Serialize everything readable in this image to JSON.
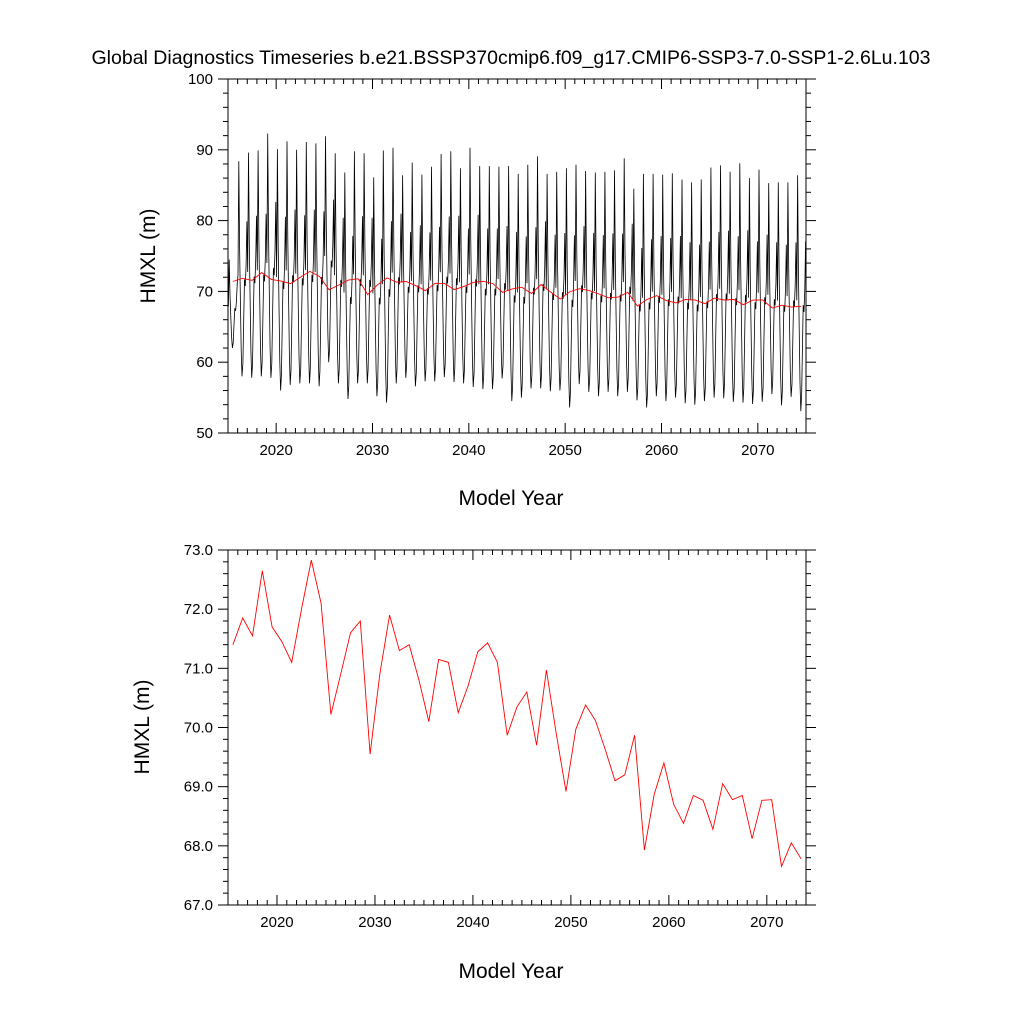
{
  "figure": {
    "title": "Global Diagnostics Timeseries b.e21.BSSP370cmip6.f09_g17.CMIP6-SSP3-7.0-SSP1-2.6Lu.103"
  },
  "chart_data": [
    {
      "type": "line",
      "title": "Global Diagnostics Timeseries b.e21.BSSP370cmip6.f09_g17.CMIP6-SSP3-7.0-SSP1-2.6Lu.103",
      "xlabel": "Model Year",
      "ylabel": "HMXL (m)",
      "xlim": [
        2015,
        2075
      ],
      "ylim": [
        50,
        100
      ],
      "xticks": [
        2020,
        2030,
        2040,
        2050,
        2060,
        2070
      ],
      "xtick_labels": [
        "2020",
        "2030",
        "2040",
        "2050",
        "2060",
        "2070"
      ],
      "yticks": [
        50,
        60,
        70,
        80,
        90,
        100
      ],
      "ytick_labels": [
        "50",
        "60",
        "70",
        "80",
        "90",
        "100"
      ],
      "grid": false,
      "legend": "none",
      "series": [
        {
          "color": "#000000",
          "sampling": "monthly",
          "start_year": 2015,
          "annual_max": [
            74.5,
            88.4,
            89.6,
            89.9,
            92.3,
            90.1,
            91.2,
            90.0,
            91.1,
            90.9,
            91.9,
            89.5,
            86.8,
            89.8,
            89.5,
            86.1,
            89.9,
            90.3,
            86.4,
            88.2,
            86.5,
            87.6,
            89.4,
            89.8,
            87.4,
            90.3,
            87.7,
            87.7,
            87.6,
            87.7,
            86.6,
            87.9,
            89.1,
            86.6,
            86.9,
            87.4,
            87.9,
            87.0,
            86.8,
            86.9,
            87.1,
            88.8,
            84.5,
            86.6,
            86.6,
            86.5,
            86.7,
            85.8,
            85.4,
            85.8,
            87.5,
            87.8,
            86.9,
            88.1,
            86.0,
            87.2,
            85.3,
            85.4,
            85.4,
            86.4
          ],
          "annual_min": [
            62.0,
            58.0,
            57.8,
            58.0,
            57.8,
            56.0,
            56.8,
            57.0,
            57.0,
            56.6,
            60.0,
            57.0,
            54.8,
            57.0,
            57.0,
            55.2,
            54.3,
            57.0,
            57.8,
            56.6,
            57.3,
            57.3,
            57.9,
            57.2,
            57.0,
            56.5,
            56.2,
            56.2,
            57.7,
            54.5,
            55.0,
            56.3,
            56.3,
            55.9,
            56.0,
            53.6,
            56.9,
            55.8,
            55.2,
            55.8,
            55.2,
            55.8,
            54.6,
            53.6,
            55.2,
            54.5,
            55.0,
            54.2,
            54.0,
            54.5,
            55.0,
            54.9,
            54.4,
            54.3,
            54.1,
            54.4,
            55.5,
            53.9,
            55.1,
            53.1
          ]
        },
        {
          "color": "#ff0000",
          "sampling": "annual",
          "x": [
            2015.5,
            2016.5,
            2017.5,
            2018.5,
            2019.5,
            2020.5,
            2021.5,
            2022.5,
            2023.5,
            2024.5,
            2025.5,
            2026.5,
            2027.5,
            2028.5,
            2029.5,
            2030.5,
            2031.5,
            2032.5,
            2033.5,
            2034.5,
            2035.5,
            2036.5,
            2037.5,
            2038.5,
            2039.5,
            2040.5,
            2041.5,
            2042.5,
            2043.5,
            2044.5,
            2045.5,
            2046.5,
            2047.5,
            2048.5,
            2049.5,
            2050.5,
            2051.5,
            2052.5,
            2053.5,
            2054.5,
            2055.5,
            2056.5,
            2057.5,
            2058.5,
            2059.5,
            2060.5,
            2061.5,
            2062.5,
            2063.5,
            2064.5,
            2065.5,
            2066.5,
            2067.5,
            2068.5,
            2069.5,
            2070.5,
            2071.5,
            2072.5,
            2073.5,
            2074.5
          ],
          "y": [
            71.4,
            71.85,
            71.55,
            72.65,
            71.7,
            71.45,
            71.1,
            72.0,
            72.83,
            72.1,
            70.22,
            70.9,
            71.6,
            71.8,
            69.55,
            70.9,
            71.9,
            71.3,
            71.4,
            70.8,
            70.1,
            71.15,
            71.1,
            70.25,
            70.7,
            71.28,
            71.43,
            71.1,
            69.87,
            70.35,
            70.6,
            69.7,
            70.97,
            69.9,
            68.92,
            69.97,
            70.38,
            70.12,
            69.63,
            69.1,
            69.2,
            69.87,
            67.93,
            68.87,
            69.4,
            68.7,
            68.38,
            68.85,
            68.77,
            68.28,
            69.05,
            68.78,
            68.85,
            68.12,
            68.77,
            68.78,
            67.65,
            68.05,
            67.78,
            67.9
          ]
        }
      ]
    },
    {
      "type": "line",
      "xlabel": "Model Year",
      "ylabel": "HMXL (m)",
      "xlim": [
        2015,
        2074
      ],
      "ylim": [
        67.0,
        73.0
      ],
      "xticks": [
        2020,
        2030,
        2040,
        2050,
        2060,
        2070
      ],
      "xtick_labels": [
        "2020",
        "2030",
        "2040",
        "2050",
        "2060",
        "2070"
      ],
      "yticks": [
        67.0,
        68.0,
        69.0,
        70.0,
        71.0,
        72.0,
        73.0
      ],
      "ytick_labels": [
        "67.0",
        "68.0",
        "69.0",
        "70.0",
        "71.0",
        "72.0",
        "73.0"
      ],
      "grid": false,
      "legend": "none",
      "series": [
        {
          "color": "#ff0000",
          "x": [
            2015.5,
            2016.5,
            2017.5,
            2018.5,
            2019.5,
            2020.5,
            2021.5,
            2022.5,
            2023.5,
            2024.5,
            2025.5,
            2026.5,
            2027.5,
            2028.5,
            2029.5,
            2030.5,
            2031.5,
            2032.5,
            2033.5,
            2034.5,
            2035.5,
            2036.5,
            2037.5,
            2038.5,
            2039.5,
            2040.5,
            2041.5,
            2042.5,
            2043.5,
            2044.5,
            2045.5,
            2046.5,
            2047.5,
            2048.5,
            2049.5,
            2050.5,
            2051.5,
            2052.5,
            2053.5,
            2054.5,
            2055.5,
            2056.5,
            2057.5,
            2058.5,
            2059.5,
            2060.5,
            2061.5,
            2062.5,
            2063.5,
            2064.5,
            2065.5,
            2066.5,
            2067.5,
            2068.5,
            2069.5,
            2070.5,
            2071.5,
            2072.5,
            2073.5
          ],
          "y": [
            71.4,
            71.85,
            71.55,
            72.65,
            71.7,
            71.45,
            71.1,
            72.0,
            72.83,
            72.1,
            70.22,
            70.9,
            71.6,
            71.8,
            69.55,
            70.9,
            71.9,
            71.3,
            71.4,
            70.8,
            70.1,
            71.15,
            71.1,
            70.25,
            70.7,
            71.28,
            71.43,
            71.1,
            69.87,
            70.35,
            70.6,
            69.7,
            70.97,
            69.9,
            68.92,
            69.97,
            70.38,
            70.12,
            69.63,
            69.1,
            69.2,
            69.87,
            67.93,
            68.87,
            69.4,
            68.7,
            68.38,
            68.85,
            68.77,
            68.28,
            69.05,
            68.78,
            68.85,
            68.12,
            68.77,
            68.78,
            67.65,
            68.05,
            67.78
          ]
        }
      ]
    }
  ]
}
